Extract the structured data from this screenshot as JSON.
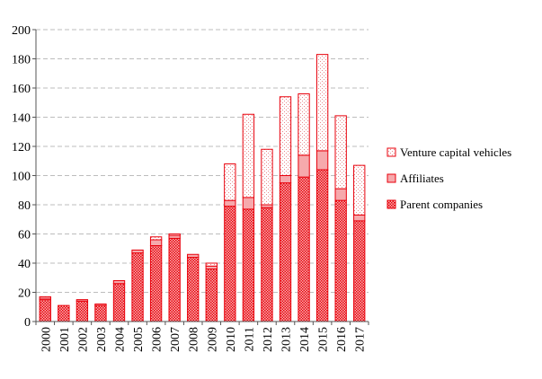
{
  "chart_data": {
    "type": "bar",
    "stacked": true,
    "title": "",
    "xlabel": "",
    "ylabel": "",
    "ylim": [
      0,
      200
    ],
    "yticks": [
      0,
      20,
      40,
      60,
      80,
      100,
      120,
      140,
      160,
      180,
      200
    ],
    "grid": "horizontal dashed",
    "legend_position": "right",
    "categories": [
      "2000",
      "2001",
      "2002",
      "2003",
      "2004",
      "2005",
      "2006",
      "2007",
      "2008",
      "2009",
      "2010",
      "2011",
      "2012",
      "2013",
      "2014",
      "2015",
      "2016",
      "2017"
    ],
    "series": [
      {
        "name": "Parent companies",
        "color": "#e8000b",
        "pattern": "dense",
        "values": [
          15,
          11,
          14,
          11,
          26,
          47,
          52,
          57,
          44,
          36,
          79,
          77,
          78,
          95,
          99,
          104,
          83,
          69
        ]
      },
      {
        "name": "Affiliates",
        "color": "#e8000b",
        "pattern": "solid-light",
        "values": [
          1,
          0,
          1,
          1,
          2,
          2,
          4,
          2,
          2,
          2,
          4,
          8,
          2,
          5,
          15,
          13,
          8,
          4
        ]
      },
      {
        "name": "Venture capital vehicles",
        "color": "#e8000b",
        "pattern": "sparse",
        "values": [
          1,
          0,
          0,
          0,
          0,
          0,
          2,
          1,
          0,
          2,
          25,
          57,
          38,
          54,
          42,
          66,
          50,
          34
        ]
      }
    ]
  }
}
